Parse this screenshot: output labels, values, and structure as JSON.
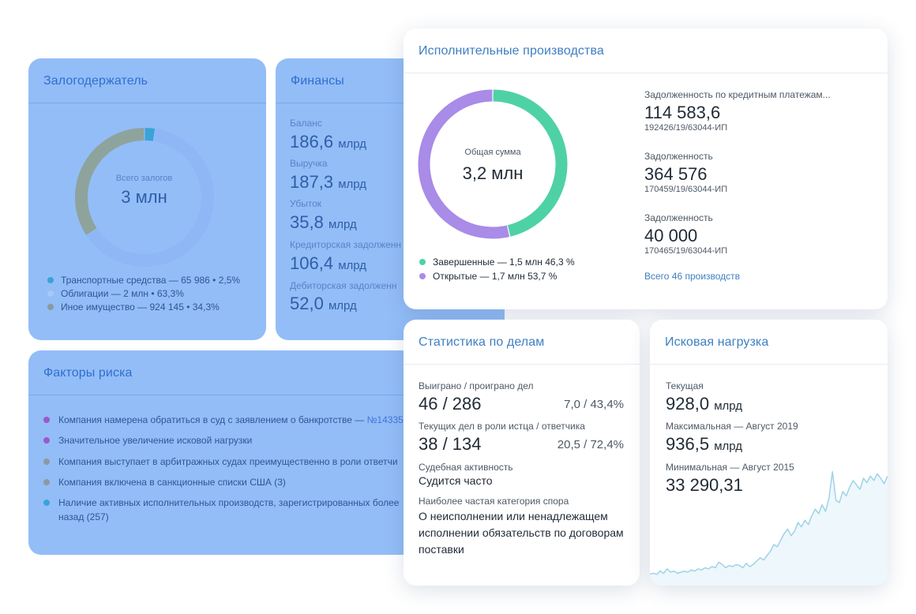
{
  "pledge": {
    "title": "Залогодержатель",
    "center_label": "Всего залогов",
    "center_value": "3 млн",
    "legend": [
      {
        "label": "Транспортные средства — 65 986 • 2,5%",
        "color": "#3aa3d8",
        "share": 2.5
      },
      {
        "label": "Облигации — 2 млн • 63,3%",
        "color": "#8fb6f5",
        "share": 63.3
      },
      {
        "label": "Иное имущество — 924 145 • 34,3%",
        "color": "#8ea39c",
        "share": 34.3
      }
    ]
  },
  "finance": {
    "title": "Финансы",
    "items": [
      {
        "label": "Баланс",
        "value": "186,6",
        "unit": "млрд"
      },
      {
        "label": "Выручка",
        "value": "187,3",
        "unit": "млрд"
      },
      {
        "label": "Убыток",
        "value": "35,8",
        "unit": "млрд"
      },
      {
        "label": "Кредиторская задолженн",
        "value": "106,4",
        "unit": "млрд"
      },
      {
        "label": "Дебиторская задолженн",
        "value": "52,0",
        "unit": "млрд"
      }
    ]
  },
  "risk": {
    "title": "Факторы риска",
    "items": [
      {
        "text": "Компания намерена обратиться в суд с заявлением о банкротстве — ",
        "link": "№14335",
        "color": "#9b59c9"
      },
      {
        "text": "Значительное увеличение исковой нагрузки",
        "link": "",
        "color": "#9b59c9"
      },
      {
        "text": "Компания выступает в арбитражных судах преимущественно в роли ответчи",
        "link": "",
        "color": "#8a9aa0"
      },
      {
        "text": "Компания включена в санкционные списки США (3)",
        "link": "",
        "color": "#8a9aa0"
      },
      {
        "text": "Наличие активных исполнительных производств, зарегистрированных более",
        "text2": "назад (257)",
        "link": "",
        "color": "#3aa3d8"
      }
    ]
  },
  "enforcement": {
    "title": "Исполнительные производства",
    "center_label": "Общая сумма",
    "center_value": "3,2 млн",
    "legend": [
      {
        "label": "Завершенные — 1,5 млн 46,3 %",
        "color": "#4fd1a6",
        "share": 46.3
      },
      {
        "label": "Открытые — 1,7 млн 53,7 %",
        "color": "#a98be8",
        "share": 53.7
      }
    ],
    "items": [
      {
        "label": "Задолженность по кредитным платежам...",
        "value": "114 583,6",
        "case": "192426/19/63044-ИП"
      },
      {
        "label": "Задолженность",
        "value": "364 576",
        "case": "170459/19/63044-ИП"
      },
      {
        "label": "Задолженность",
        "value": "40 000",
        "case": "170465/19/63044-ИП"
      }
    ],
    "all_link": "Всего 46 производств"
  },
  "stats": {
    "title": "Статистика по делам",
    "won_label": "Выиграно / проиграно дел",
    "won_value": "46 / 286",
    "won_pct": "7,0 / 43,4%",
    "current_label": "Текущих дел в роли истца / ответчика",
    "current_value": "38 / 134",
    "current_pct": "20,5 / 72,4%",
    "activity_label": "Судебная активность",
    "activity_value": "Судится часто",
    "category_label": "Наиболее частая категория спора",
    "category_value": "О неисполнении или ненадлежащем исполнении обязательств по договорам поставки"
  },
  "load": {
    "title": "Исковая нагрузка",
    "current_label": "Текущая",
    "current_value": "928,0",
    "current_unit": "млрд",
    "max_label": "Максимальная — Август 2019",
    "max_value": "936,5",
    "max_unit": "млрд",
    "min_label": "Минимальная — Август 2015",
    "min_value": "33 290,31",
    "colors": {
      "line": "#9ed3e8",
      "fill": "#eef7fb"
    }
  },
  "chart_data": {
    "type": "area",
    "values": [
      3,
      4,
      3,
      6,
      4,
      8,
      5,
      6,
      4,
      5,
      6,
      5,
      7,
      6,
      8,
      7,
      9,
      8,
      10,
      9,
      14,
      12,
      9,
      11,
      10,
      12,
      11,
      9,
      13,
      10,
      12,
      15,
      18,
      16,
      20,
      24,
      30,
      28,
      34,
      40,
      44,
      38,
      42,
      50,
      46,
      52,
      48,
      56,
      62,
      58,
      66,
      60,
      72,
      96,
      70,
      68,
      78,
      74,
      82,
      88,
      84,
      80,
      90,
      86,
      92,
      88,
      94,
      90,
      85,
      92
    ],
    "ylim": [
      0,
      100
    ]
  }
}
